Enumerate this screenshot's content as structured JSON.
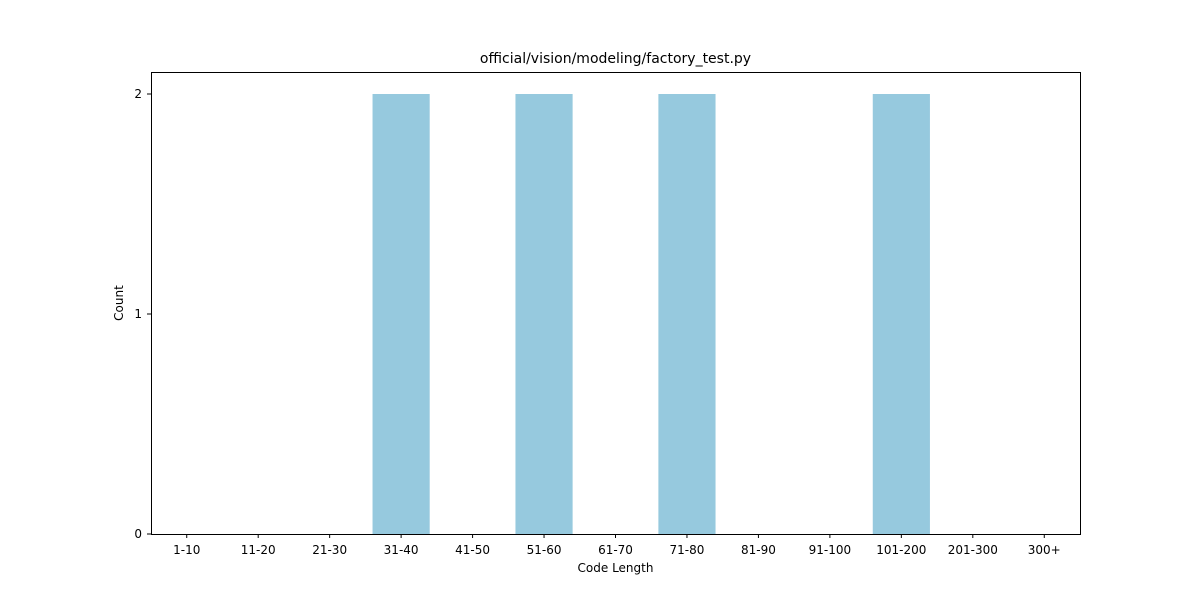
{
  "chart_data": {
    "type": "bar",
    "title": "official/vision/modeling/factory_test.py",
    "xlabel": "Code Length",
    "ylabel": "Count",
    "categories": [
      "1-10",
      "11-20",
      "21-30",
      "31-40",
      "41-50",
      "51-60",
      "61-70",
      "71-80",
      "81-90",
      "91-100",
      "101-200",
      "201-300",
      "300+"
    ],
    "values": [
      0,
      0,
      0,
      2,
      0,
      2,
      0,
      2,
      0,
      0,
      2,
      0,
      0
    ],
    "ylim": [
      0,
      2.1
    ],
    "yticks": [
      0,
      1,
      2
    ],
    "grid": false,
    "bar_color": "#96c9de"
  }
}
